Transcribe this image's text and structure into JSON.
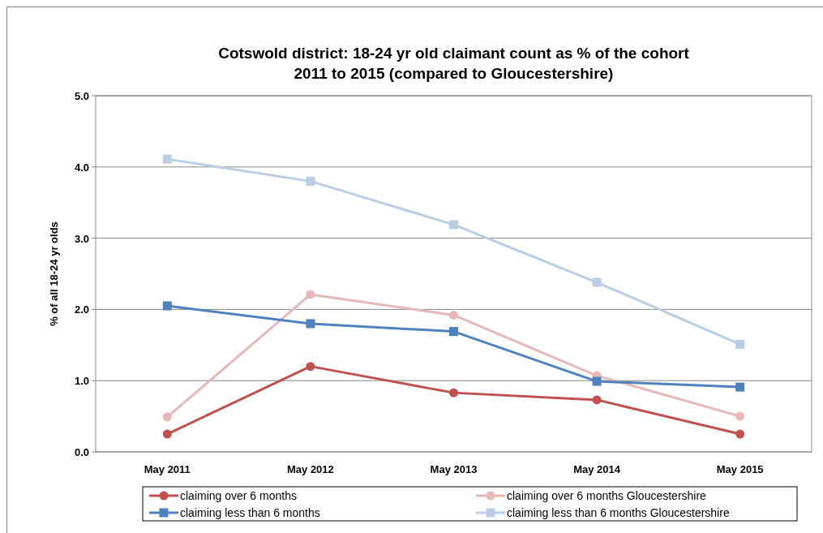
{
  "chart_data": {
    "type": "line",
    "title": "Cotswold district: 18-24 yr old claimant count as % of the cohort\n2011 to 2015 (compared to Gloucestershire)",
    "ylabel": "% of all 18-24 yr olds",
    "categories": [
      "May 2011",
      "May 2012",
      "May 2013",
      "May 2014",
      "May 2015"
    ],
    "ylim": [
      0,
      5
    ],
    "yticks": [
      {
        "value": 0,
        "label": "0.0"
      },
      {
        "value": 1,
        "label": "1.0"
      },
      {
        "value": 2,
        "label": "2.0"
      },
      {
        "value": 3,
        "label": "3.0"
      },
      {
        "value": 4,
        "label": "4.0"
      },
      {
        "value": 5,
        "label": "5.0"
      }
    ],
    "grid": "y",
    "legend": "bottom",
    "line_style": "solid",
    "series": [
      {
        "name": "claiming over 6 months",
        "color": "#c0504d",
        "marker": "circle",
        "values": [
          0.25,
          1.2,
          0.83,
          0.73,
          0.25
        ]
      },
      {
        "name": "claiming over 6 months Gloucestershire",
        "color": "#e6b9b8",
        "marker": "circle",
        "values": [
          0.49,
          2.21,
          1.92,
          1.07,
          0.5
        ]
      },
      {
        "name": "claiming less than 6 months",
        "color": "#4f81bd",
        "marker": "square",
        "values": [
          2.05,
          1.8,
          1.69,
          0.99,
          0.91
        ]
      },
      {
        "name": "claiming less than 6 months Gloucestershire",
        "color": "#b9cde5",
        "marker": "square",
        "values": [
          4.11,
          3.8,
          3.19,
          2.38,
          1.51
        ]
      }
    ]
  }
}
